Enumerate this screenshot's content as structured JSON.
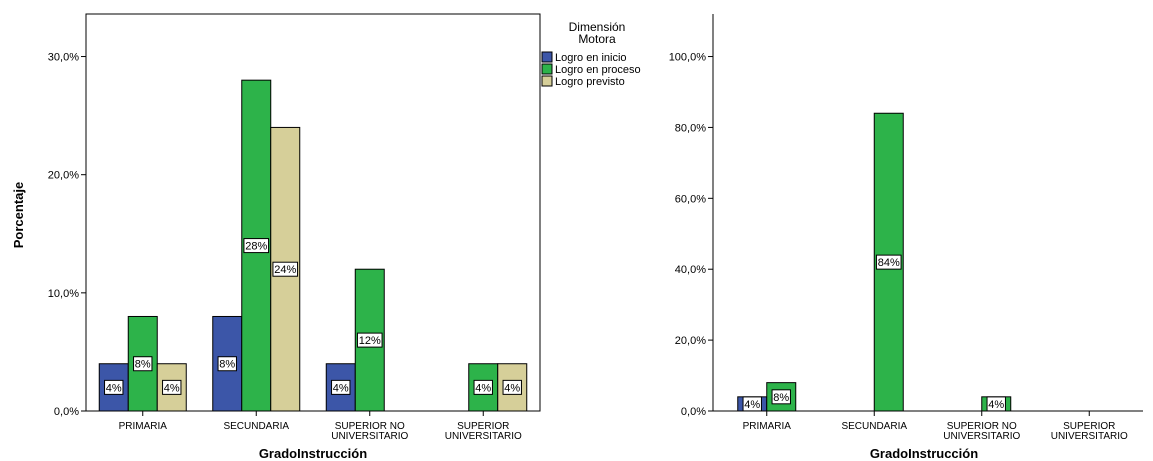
{
  "chart_data": [
    {
      "type": "bar",
      "ylabel": "Porcentaje",
      "xlabel": "GradoInstrucción",
      "ylim": [
        0,
        33.6
      ],
      "yticks": [
        0,
        10,
        20,
        30
      ],
      "ytick_labels": [
        "0,0%",
        "10,0%",
        "20,0%",
        "30,0%"
      ],
      "categories": [
        "PRIMARIA",
        "SECUNDARIA",
        "SUPERIOR NO UNIVERSITARIO",
        "SUPERIOR UNIVERSITARIO"
      ],
      "category_lines": [
        [
          "PRIMARIA"
        ],
        [
          "SECUNDARIA"
        ],
        [
          "SUPERIOR NO",
          "UNIVERSITARIO"
        ],
        [
          "SUPERIOR",
          "UNIVERSITARIO"
        ]
      ],
      "legend": {
        "title_lines": [
          "Dimensión",
          "Motora"
        ],
        "placement": "top-right"
      },
      "series": [
        {
          "name": "Logro en inicio",
          "color": "#3c56a8",
          "values": [
            4,
            8,
            4,
            0
          ],
          "labels": [
            "4%",
            "8%",
            "4%",
            ""
          ]
        },
        {
          "name": "Logro en proceso",
          "color": "#2db34a",
          "values": [
            8,
            28,
            12,
            4
          ],
          "labels": [
            "8%",
            "28%",
            "12%",
            "4%"
          ]
        },
        {
          "name": "Logro previsto",
          "color": "#d6cf99",
          "values": [
            4,
            24,
            0,
            4
          ],
          "labels": [
            "4%",
            "24%",
            "",
            "4%"
          ]
        }
      ],
      "grid": false
    },
    {
      "type": "bar",
      "xlabel": "GradoInstrucción",
      "ylim": [
        0,
        112
      ],
      "yticks": [
        0,
        20,
        40,
        60,
        80,
        100
      ],
      "ytick_labels": [
        "0,0%",
        "20,0%",
        "40,0%",
        "60,0%",
        "80,0%",
        "100,0%"
      ],
      "categories": [
        "PRIMARIA",
        "SECUNDARIA",
        "SUPERIOR NO UNIVERSITARIO",
        "SUPERIOR UNIVERSITARIO"
      ],
      "category_lines": [
        [
          "PRIMARIA"
        ],
        [
          "SECUNDARIA"
        ],
        [
          "SUPERIOR NO",
          "UNIVERSITARIO"
        ],
        [
          "SUPERIOR",
          "UNIVERSITARIO"
        ]
      ],
      "series": [
        {
          "color": "#3c56a8",
          "values": [
            4,
            0,
            0,
            0
          ],
          "labels": [
            "4%",
            "",
            "",
            ""
          ]
        },
        {
          "color": "#2db34a",
          "values": [
            8,
            84,
            4,
            0
          ],
          "labels": [
            "8%",
            "84%",
            "4%",
            ""
          ]
        }
      ],
      "grid": false
    }
  ]
}
